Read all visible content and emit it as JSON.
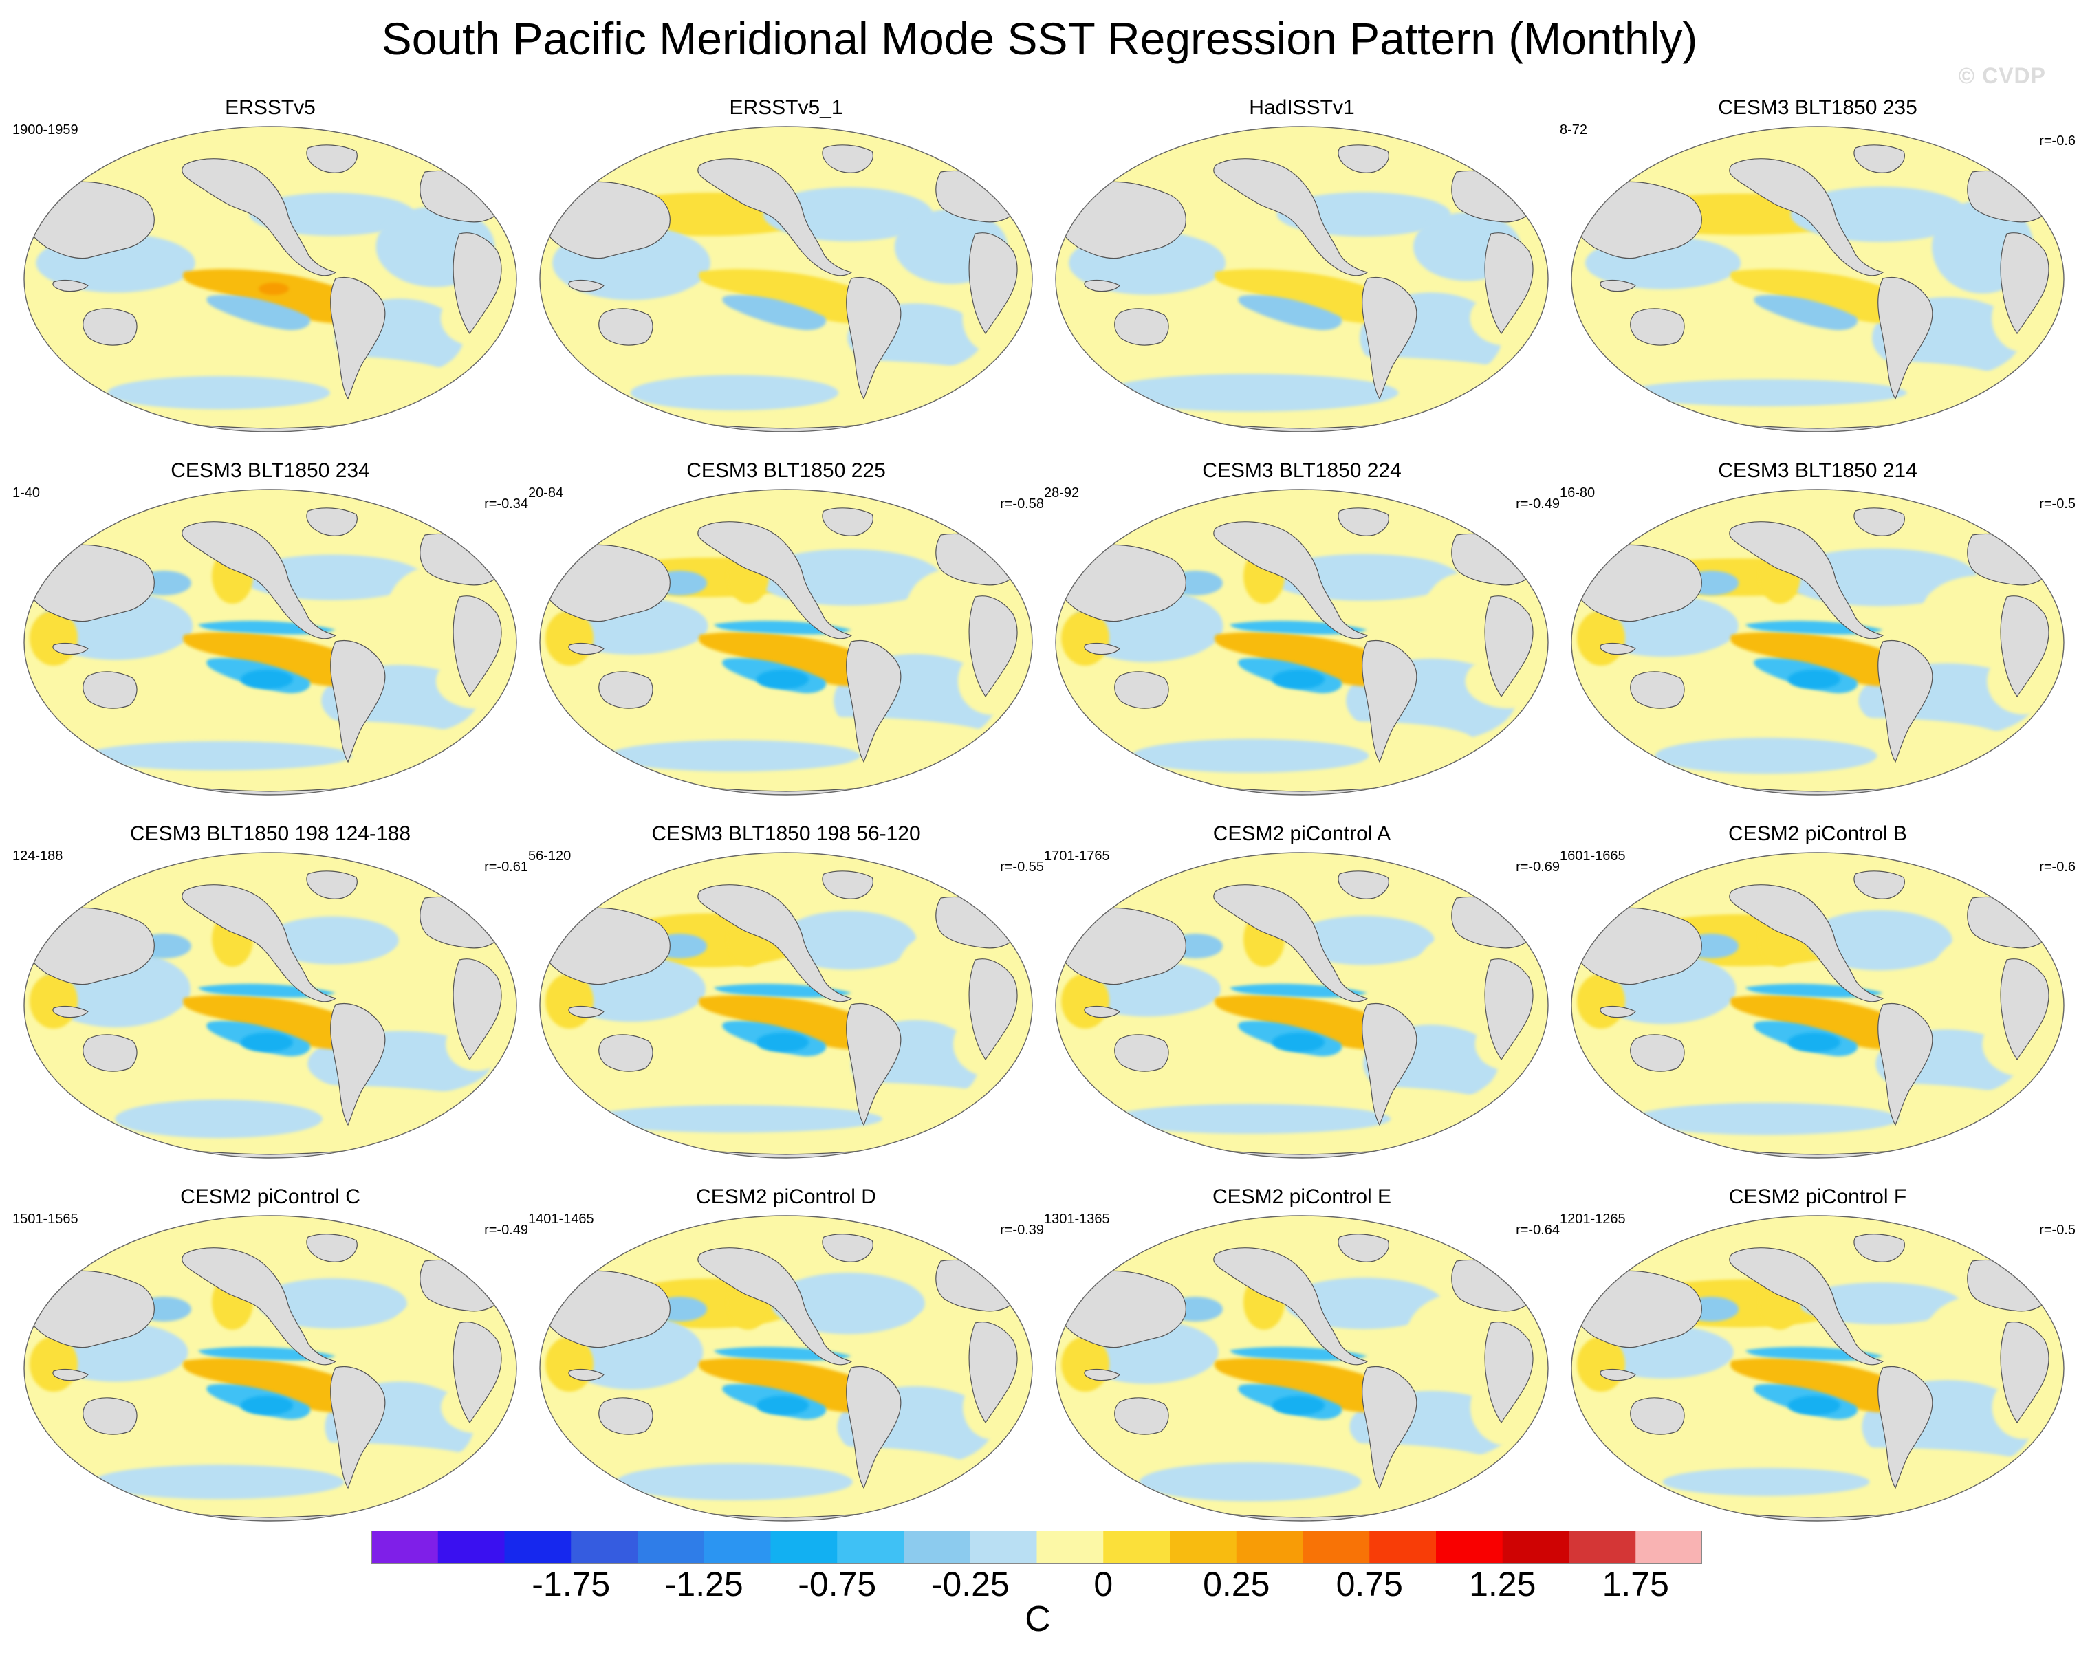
{
  "title": "South Pacific Meridional Mode SST Regression Pattern (Monthly)",
  "watermark": "© CVDP",
  "chart_data": {
    "type": "heatmap",
    "projection": "robinson (global map)",
    "units": "C",
    "colorbar": {
      "levels": [
        -2.25,
        -2.0,
        -1.75,
        -1.5,
        -1.25,
        -1.0,
        -0.75,
        -0.5,
        -0.25,
        -0.1,
        0,
        0.1,
        0.25,
        0.5,
        0.75,
        1.0,
        1.25,
        1.5,
        1.75,
        2.0,
        2.25
      ],
      "colors": [
        "#7f1fe8",
        "#3a10f0",
        "#1628ee",
        "#355ce0",
        "#2f7de8",
        "#2b95f2",
        "#12b0f2",
        "#3fc1f5",
        "#8ccbee",
        "#b9dff3",
        "#fcf8a6",
        "#fbe03a",
        "#f8bb10",
        "#f89c06",
        "#f87306",
        "#f83d07",
        "#f90000",
        "#cf0303",
        "#d43636",
        "#f9b3b3"
      ],
      "tick_labels": [
        "-1.75",
        "-1.25",
        "-0.75",
        "-0.25",
        "0",
        "0.25",
        "0.75",
        "1.25",
        "1.75"
      ],
      "tick_levels": [
        -1.75,
        -1.25,
        -0.75,
        -0.25,
        0,
        0.25,
        0.75,
        1.25,
        1.75
      ]
    },
    "panels": [
      {
        "title": "ERSSTv5",
        "period": "1900-1959",
        "r": ""
      },
      {
        "title": "ERSSTv5_1",
        "period": "",
        "r": ""
      },
      {
        "title": "HadISSTv1",
        "period": "",
        "r": ""
      },
      {
        "title": "CESM3 BLT1850 235",
        "period": "8-72",
        "r": "r=-0.6"
      },
      {
        "title": "CESM3 BLT1850 234",
        "period": "1-40",
        "r": "r=-0.34"
      },
      {
        "title": "CESM3 BLT1850 225",
        "period": "20-84",
        "r": "r=-0.58"
      },
      {
        "title": "CESM3 BLT1850 224",
        "period": "28-92",
        "r": "r=-0.49"
      },
      {
        "title": "CESM3 BLT1850 214",
        "period": "16-80",
        "r": "r=-0.5"
      },
      {
        "title": "CESM3 BLT1850 198 124-188",
        "period": "124-188",
        "r": "r=-0.61"
      },
      {
        "title": "CESM3 BLT1850 198 56-120",
        "period": "56-120",
        "r": "r=-0.55"
      },
      {
        "title": "CESM2 piControl A",
        "period": "1701-1765",
        "r": "r=-0.69"
      },
      {
        "title": "CESM2 piControl B",
        "period": "1601-1665",
        "r": "r=-0.6"
      },
      {
        "title": "CESM2 piControl C",
        "period": "1501-1565",
        "r": "r=-0.49"
      },
      {
        "title": "CESM2 piControl D",
        "period": "1401-1465",
        "r": "r=-0.39"
      },
      {
        "title": "CESM2 piControl E",
        "period": "1301-1365",
        "r": "r=-0.64"
      },
      {
        "title": "CESM2 piControl F",
        "period": "1201-1265",
        "r": "r=-0.5"
      }
    ]
  }
}
